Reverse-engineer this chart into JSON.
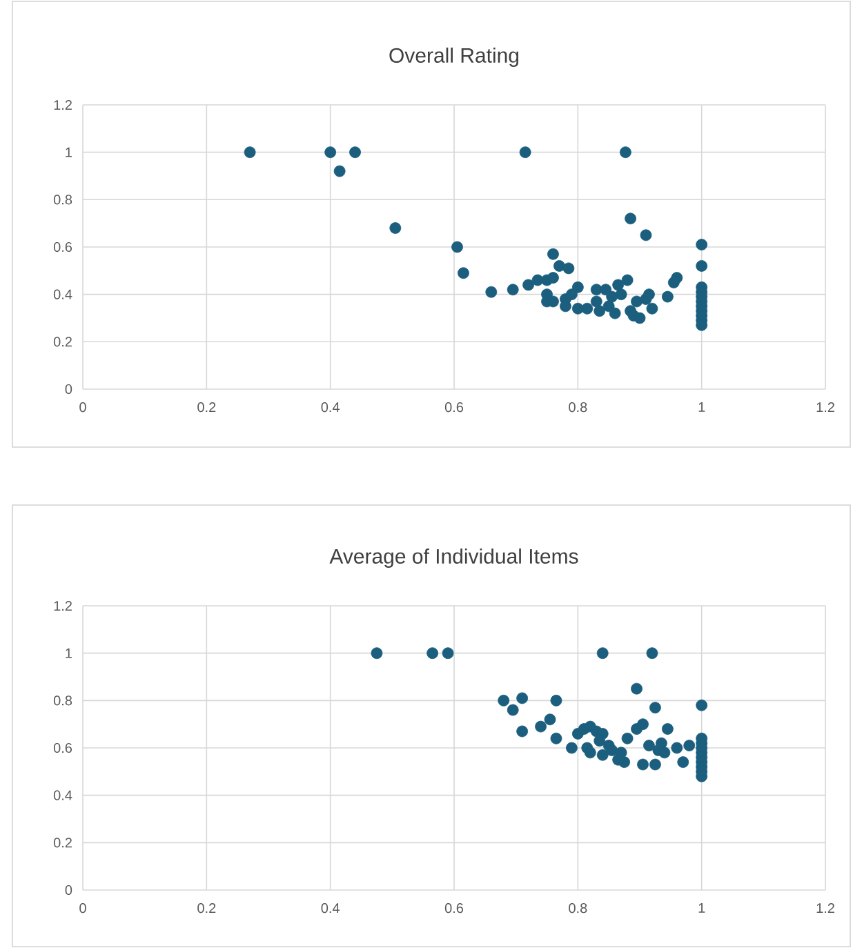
{
  "chart_data": [
    {
      "type": "scatter",
      "title": "Overall Rating",
      "color": "#1b5e7e",
      "marker": "circle",
      "grid": true,
      "xlim": [
        0,
        1.2
      ],
      "ylim": [
        0,
        1.2
      ],
      "xticks": [
        0,
        0.2,
        0.4,
        0.6,
        0.8,
        1,
        1.2
      ],
      "yticks": [
        0,
        0.2,
        0.4,
        0.6,
        0.8,
        1,
        1.2
      ],
      "x": [
        0.27,
        0.4,
        0.44,
        0.415,
        0.715,
        0.877,
        0.505,
        0.605,
        0.615,
        0.885,
        0.91,
        1,
        1,
        0.66,
        0.695,
        0.72,
        0.735,
        0.75,
        0.76,
        0.76,
        0.77,
        0.785,
        0.75,
        0.75,
        0.76,
        0.78,
        0.78,
        0.79,
        0.8,
        0.8,
        0.815,
        0.83,
        0.83,
        0.835,
        0.845,
        0.85,
        0.855,
        0.86,
        0.865,
        0.87,
        0.88,
        0.885,
        0.89,
        0.895,
        0.9,
        0.91,
        0.915,
        0.92,
        0.945,
        0.955,
        0.96,
        1,
        1,
        1,
        1,
        1,
        1,
        1,
        1,
        1
      ],
      "values": [
        1,
        1,
        1,
        0.92,
        1,
        1,
        0.68,
        0.6,
        0.49,
        0.72,
        0.65,
        0.61,
        0.52,
        0.41,
        0.42,
        0.44,
        0.46,
        0.46,
        0.47,
        0.57,
        0.52,
        0.51,
        0.4,
        0.37,
        0.37,
        0.38,
        0.35,
        0.4,
        0.43,
        0.34,
        0.34,
        0.42,
        0.37,
        0.33,
        0.42,
        0.35,
        0.39,
        0.32,
        0.44,
        0.4,
        0.46,
        0.33,
        0.31,
        0.37,
        0.3,
        0.38,
        0.4,
        0.34,
        0.39,
        0.45,
        0.47,
        0.43,
        0.41,
        0.39,
        0.37,
        0.35,
        0.33,
        0.31,
        0.29,
        0.27
      ]
    },
    {
      "type": "scatter",
      "title": "Average of Individual Items",
      "color": "#1b5e7e",
      "marker": "circle",
      "grid": true,
      "xlim": [
        0,
        1.2
      ],
      "ylim": [
        0,
        1.2
      ],
      "xticks": [
        0,
        0.2,
        0.4,
        0.6,
        0.8,
        1,
        1.2
      ],
      "yticks": [
        0,
        0.2,
        0.4,
        0.6,
        0.8,
        1,
        1.2
      ],
      "x": [
        0.475,
        0.565,
        0.59,
        0.84,
        0.92,
        0.895,
        0.68,
        0.71,
        0.765,
        0.695,
        0.925,
        1,
        0.755,
        0.74,
        0.71,
        0.765,
        0.79,
        0.8,
        0.81,
        0.82,
        0.83,
        0.84,
        0.815,
        0.82,
        0.835,
        0.84,
        0.85,
        0.855,
        0.86,
        0.865,
        0.87,
        0.875,
        0.88,
        0.895,
        0.905,
        0.905,
        0.915,
        0.925,
        0.93,
        0.935,
        0.94,
        0.945,
        0.96,
        0.97,
        0.98,
        1,
        1,
        1,
        1,
        1,
        1,
        1,
        1,
        1
      ],
      "values": [
        1,
        1,
        1,
        1,
        1,
        0.85,
        0.8,
        0.81,
        0.8,
        0.76,
        0.77,
        0.78,
        0.72,
        0.69,
        0.67,
        0.64,
        0.6,
        0.66,
        0.68,
        0.69,
        0.67,
        0.66,
        0.6,
        0.58,
        0.63,
        0.57,
        0.61,
        0.59,
        null,
        0.55,
        0.58,
        0.54,
        0.64,
        0.68,
        0.7,
        0.53,
        0.61,
        0.53,
        0.59,
        0.62,
        0.58,
        0.68,
        0.6,
        0.54,
        0.61,
        0.64,
        0.62,
        0.6,
        0.58,
        0.56,
        0.54,
        0.52,
        0.5,
        0.48
      ]
    }
  ]
}
